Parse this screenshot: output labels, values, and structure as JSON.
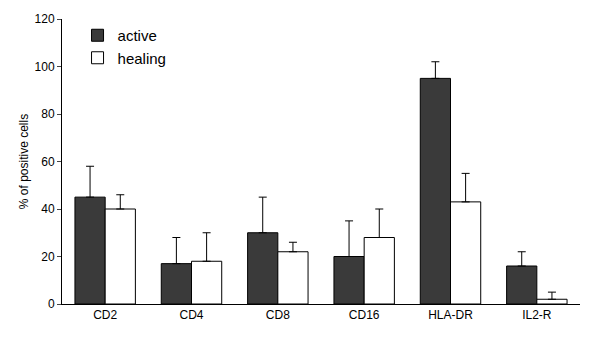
{
  "chart_data": {
    "type": "bar",
    "y_label": "% of positive cells",
    "categories": [
      "CD2",
      "CD4",
      "CD8",
      "CD16",
      "HLA-DR",
      "IL2-R"
    ],
    "series": [
      {
        "name": "active",
        "color": "#3a3a3a",
        "values": [
          45,
          17,
          30,
          20,
          95,
          16
        ],
        "errors": [
          13,
          11,
          15,
          15,
          7,
          6
        ]
      },
      {
        "name": "healing",
        "color": "#ffffff",
        "values": [
          40,
          18,
          22,
          28,
          43,
          2
        ],
        "errors": [
          6,
          12,
          4,
          12,
          12,
          3
        ]
      }
    ],
    "ylim": [
      0,
      120
    ],
    "yticks": [
      0,
      20,
      40,
      60,
      80,
      100,
      120
    ],
    "grid": false,
    "legend": "top-left"
  }
}
